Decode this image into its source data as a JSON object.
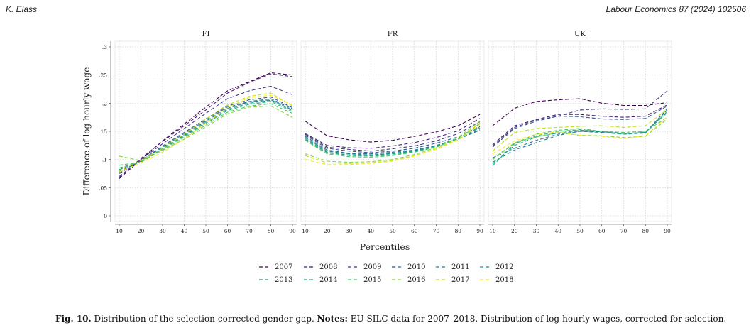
{
  "header": {
    "author": "K. Elass",
    "journal": "Labour Economics 87 (2024) 102506"
  },
  "caption": {
    "label": "Fig. 10.",
    "text1": "Distribution of the selection-corrected gender gap.",
    "notes_label": "Notes:",
    "text2": "EU-SILC data for 2007–2018. Distribution of log-hourly wages, corrected for selection."
  },
  "chart_data": {
    "type": "line",
    "ylabel": "Difference of log-hourly wage",
    "xlabel": "Percentiles",
    "x": [
      10,
      20,
      30,
      40,
      50,
      60,
      70,
      80,
      90
    ],
    "ylim": [
      0,
      0.3
    ],
    "yticks": [
      0,
      0.05,
      0.1,
      0.15,
      0.2,
      0.25,
      0.3
    ],
    "yticklabels": [
      "0",
      ".05",
      ".1",
      ".15",
      ".2",
      ".25",
      ".3"
    ],
    "grid": true,
    "legend_position": "bottom",
    "years": [
      "2007",
      "2008",
      "2009",
      "2010",
      "2011",
      "2012",
      "2013",
      "2014",
      "2015",
      "2016",
      "2017",
      "2018"
    ],
    "colors": [
      "#440154",
      "#482173",
      "#433e85",
      "#38598c",
      "#2d708e",
      "#25858e",
      "#1e9b8a",
      "#2ab07f",
      "#52c569",
      "#86d549",
      "#c2df23",
      "#fde725"
    ],
    "panels": [
      {
        "title": "FI",
        "series": [
          {
            "name": "2007",
            "values": [
              0.066,
              0.1,
              0.133,
              0.163,
              0.193,
              0.222,
              0.238,
              0.254,
              0.25
            ]
          },
          {
            "name": "2008",
            "values": [
              0.068,
              0.102,
              0.132,
              0.16,
              0.188,
              0.218,
              0.237,
              0.252,
              0.247
            ]
          },
          {
            "name": "2009",
            "values": [
              0.07,
              0.1,
              0.128,
              0.155,
              0.182,
              0.208,
              0.222,
              0.23,
              0.215
            ]
          },
          {
            "name": "2010",
            "values": [
              0.075,
              0.098,
              0.124,
              0.148,
              0.172,
              0.195,
              0.206,
              0.211,
              0.192
            ]
          },
          {
            "name": "2011",
            "values": [
              0.077,
              0.098,
              0.122,
              0.146,
              0.17,
              0.193,
              0.203,
              0.208,
              0.19
            ]
          },
          {
            "name": "2012",
            "values": [
              0.079,
              0.097,
              0.121,
              0.144,
              0.168,
              0.191,
              0.202,
              0.206,
              0.188
            ]
          },
          {
            "name": "2013",
            "values": [
              0.082,
              0.097,
              0.12,
              0.142,
              0.166,
              0.189,
              0.2,
              0.205,
              0.187
            ]
          },
          {
            "name": "2014",
            "values": [
              0.085,
              0.096,
              0.119,
              0.141,
              0.164,
              0.187,
              0.198,
              0.203,
              0.185
            ]
          },
          {
            "name": "2015",
            "values": [
              0.09,
              0.095,
              0.117,
              0.139,
              0.161,
              0.184,
              0.195,
              0.199,
              0.182
            ]
          },
          {
            "name": "2016",
            "values": [
              0.106,
              0.098,
              0.116,
              0.136,
              0.158,
              0.181,
              0.193,
              0.195,
              0.175
            ]
          },
          {
            "name": "2017",
            "values": [
              0.08,
              0.098,
              0.12,
              0.145,
              0.172,
              0.197,
              0.212,
              0.218,
              0.195
            ]
          },
          {
            "name": "2018",
            "values": [
              0.078,
              0.094,
              0.113,
              0.136,
              0.165,
              0.192,
              0.21,
              0.214,
              0.197
            ]
          }
        ]
      },
      {
        "title": "FR",
        "series": [
          {
            "name": "2007",
            "values": [
              0.168,
              0.142,
              0.135,
              0.131,
              0.134,
              0.141,
              0.149,
              0.16,
              0.18
            ]
          },
          {
            "name": "2008",
            "values": [
              0.146,
              0.125,
              0.121,
              0.12,
              0.124,
              0.13,
              0.139,
              0.151,
              0.173
            ]
          },
          {
            "name": "2009",
            "values": [
              0.145,
              0.122,
              0.118,
              0.115,
              0.119,
              0.124,
              0.133,
              0.146,
              0.167
            ]
          },
          {
            "name": "2010",
            "values": [
              0.143,
              0.12,
              0.115,
              0.112,
              0.115,
              0.12,
              0.129,
              0.14,
              0.159
            ]
          },
          {
            "name": "2011",
            "values": [
              0.141,
              0.117,
              0.111,
              0.11,
              0.113,
              0.117,
              0.125,
              0.137,
              0.153
            ]
          },
          {
            "name": "2012",
            "values": [
              0.139,
              0.115,
              0.11,
              0.108,
              0.111,
              0.116,
              0.124,
              0.136,
              0.152
            ]
          },
          {
            "name": "2013",
            "values": [
              0.137,
              0.113,
              0.108,
              0.107,
              0.11,
              0.115,
              0.124,
              0.138,
              0.156
            ]
          },
          {
            "name": "2014",
            "values": [
              0.135,
              0.112,
              0.107,
              0.106,
              0.108,
              0.114,
              0.123,
              0.137,
              0.158
            ]
          },
          {
            "name": "2015",
            "values": [
              0.134,
              0.11,
              0.105,
              0.104,
              0.107,
              0.113,
              0.122,
              0.136,
              0.164
            ]
          },
          {
            "name": "2016",
            "values": [
              0.11,
              0.097,
              0.095,
              0.096,
              0.1,
              0.109,
              0.121,
              0.139,
              0.168
            ]
          },
          {
            "name": "2017",
            "values": [
              0.107,
              0.094,
              0.093,
              0.094,
              0.098,
              0.107,
              0.119,
              0.136,
              0.165
            ]
          },
          {
            "name": "2018",
            "values": [
              0.1,
              0.091,
              0.091,
              0.093,
              0.097,
              0.106,
              0.118,
              0.134,
              0.162
            ]
          }
        ]
      },
      {
        "title": "UK",
        "series": [
          {
            "name": "2007",
            "values": [
              0.16,
              0.191,
              0.203,
              0.206,
              0.208,
              0.2,
              0.196,
              0.196,
              0.201
            ]
          },
          {
            "name": "2008",
            "values": [
              0.126,
              0.16,
              0.171,
              0.18,
              0.18,
              0.177,
              0.175,
              0.177,
              0.197
            ]
          },
          {
            "name": "2009",
            "values": [
              0.124,
              0.157,
              0.17,
              0.177,
              0.188,
              0.19,
              0.189,
              0.19,
              0.222
            ]
          },
          {
            "name": "2010",
            "values": [
              0.122,
              0.155,
              0.168,
              0.177,
              0.176,
              0.172,
              0.171,
              0.173,
              0.195
            ]
          },
          {
            "name": "2011",
            "values": [
              0.103,
              0.12,
              0.134,
              0.145,
              0.15,
              0.149,
              0.146,
              0.148,
              0.19
            ]
          },
          {
            "name": "2012",
            "values": [
              0.095,
              0.117,
              0.13,
              0.143,
              0.15,
              0.148,
              0.145,
              0.147,
              0.188
            ]
          },
          {
            "name": "2013",
            "values": [
              0.092,
              0.125,
              0.14,
              0.147,
              0.152,
              0.15,
              0.146,
              0.148,
              0.185
            ]
          },
          {
            "name": "2014",
            "values": [
              0.089,
              0.128,
              0.142,
              0.15,
              0.153,
              0.15,
              0.145,
              0.149,
              0.183
            ]
          },
          {
            "name": "2015",
            "values": [
              0.1,
              0.129,
              0.145,
              0.152,
              0.155,
              0.15,
              0.148,
              0.15,
              0.175
            ]
          },
          {
            "name": "2016",
            "values": [
              0.101,
              0.13,
              0.14,
              0.148,
              0.143,
              0.142,
              0.139,
              0.141,
              0.172
            ]
          },
          {
            "name": "2017",
            "values": [
              0.115,
              0.148,
              0.155,
              0.157,
              0.159,
              0.16,
              0.157,
              0.16,
              0.189
            ]
          },
          {
            "name": "2018",
            "values": [
              0.11,
              0.133,
              0.145,
              0.149,
              0.143,
              0.141,
              0.137,
              0.142,
              0.176
            ]
          }
        ]
      }
    ]
  }
}
